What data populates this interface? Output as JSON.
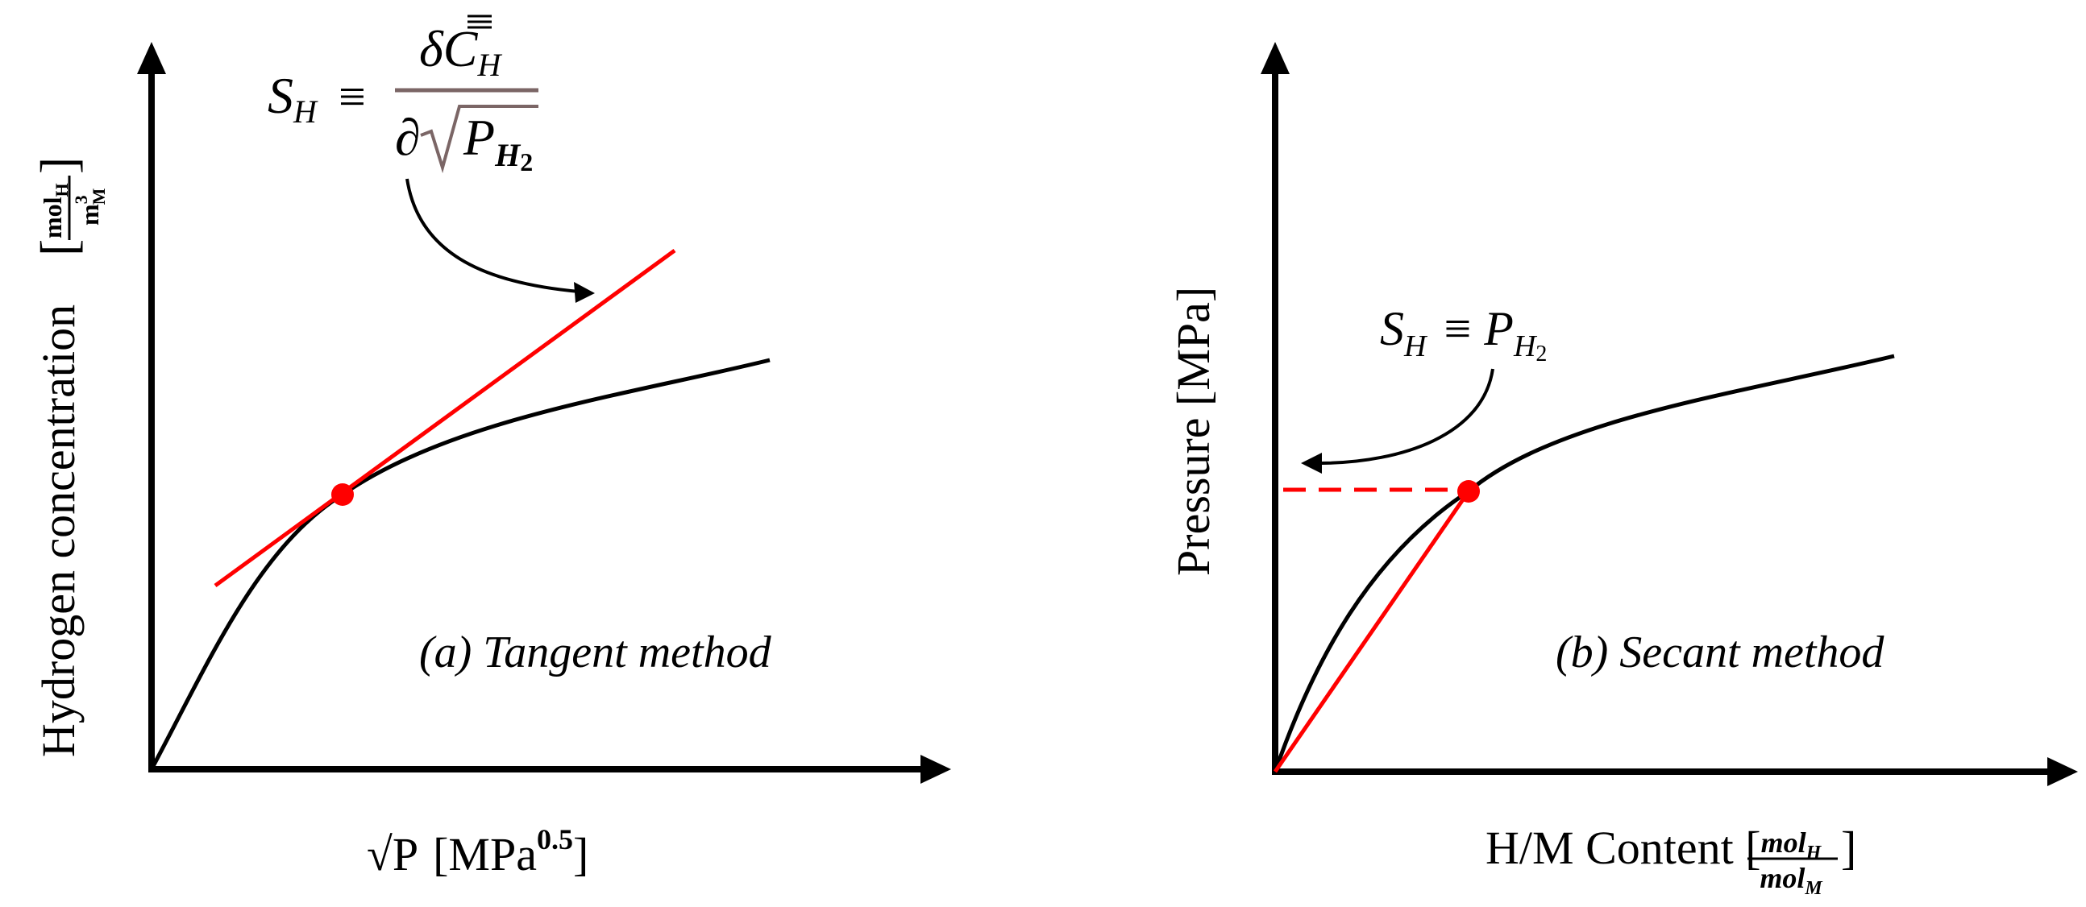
{
  "panels": [
    {
      "caption": "(a) Tangent method",
      "x_label": {
        "root": "√P",
        "unit_open": "[MPa",
        "exponent": "0.5",
        "unit_close": "]"
      },
      "y_label": {
        "text": "Hydrogen concentration",
        "bracket_open": "[",
        "numerator": "mol",
        "num_sub": "H",
        "denominator": "m",
        "den_sup": "3",
        "den_sub": "M",
        "bracket_close": "]"
      },
      "definition": {
        "lhs": "S",
        "lhs_sub": "H",
        "equiv": "≡",
        "numerator": "δC",
        "numerator_sub": "H",
        "denominator_partial": "∂",
        "denominator_var": "P",
        "denominator_sub": "H",
        "denominator_sub2": "2"
      }
    },
    {
      "caption": "(b) Secant method",
      "x_label": {
        "prefix": "H/M Content [",
        "numerator": "mol",
        "num_sub": "H",
        "denominator": "mol",
        "den_sub": "M",
        "suffix": "]"
      },
      "y_label": {
        "text": "Pressure [MPa]"
      },
      "definition": {
        "lhs": "S",
        "lhs_sub": "H",
        "equiv": "≡",
        "rhs": "P",
        "rhs_sub": "H",
        "rhs_sub2": "2"
      }
    }
  ],
  "colors": {
    "axis": "#000000",
    "curve": "#000000",
    "highlight": "#ff0000",
    "fraction_bar": "#7b6666"
  }
}
